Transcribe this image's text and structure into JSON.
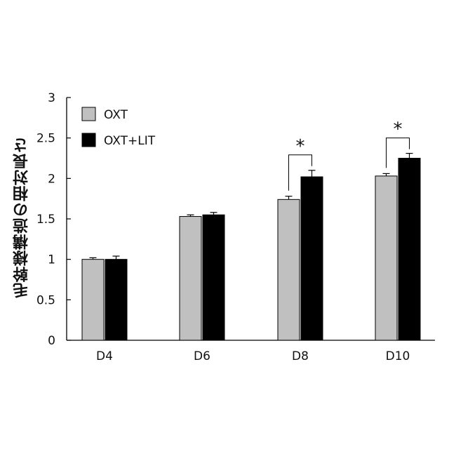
{
  "chart_data": {
    "type": "bar",
    "title": "",
    "xlabel": "",
    "ylabel": "毛幹様構造の相対長さ",
    "categories": [
      "D4",
      "D6",
      "D8",
      "D10"
    ],
    "yticks": [
      "0",
      "0.5",
      "1",
      "1.5",
      "2",
      "2.5",
      "3"
    ],
    "ylim": [
      0,
      3
    ],
    "grid": false,
    "legend_position": "top-left",
    "series": [
      {
        "name": "OXT",
        "color": "#c0c0c0",
        "values": [
          1.0,
          1.53,
          1.74,
          2.03
        ],
        "errors": [
          0.02,
          0.02,
          0.04,
          0.03
        ]
      },
      {
        "name": "OXT+LIT",
        "color": "#000000",
        "values": [
          1.0,
          1.55,
          2.02,
          2.25
        ],
        "errors": [
          0.04,
          0.03,
          0.08,
          0.06
        ]
      }
    ],
    "annotations": [
      {
        "category": "D8",
        "text": "*"
      },
      {
        "category": "D10",
        "text": "*"
      }
    ]
  }
}
